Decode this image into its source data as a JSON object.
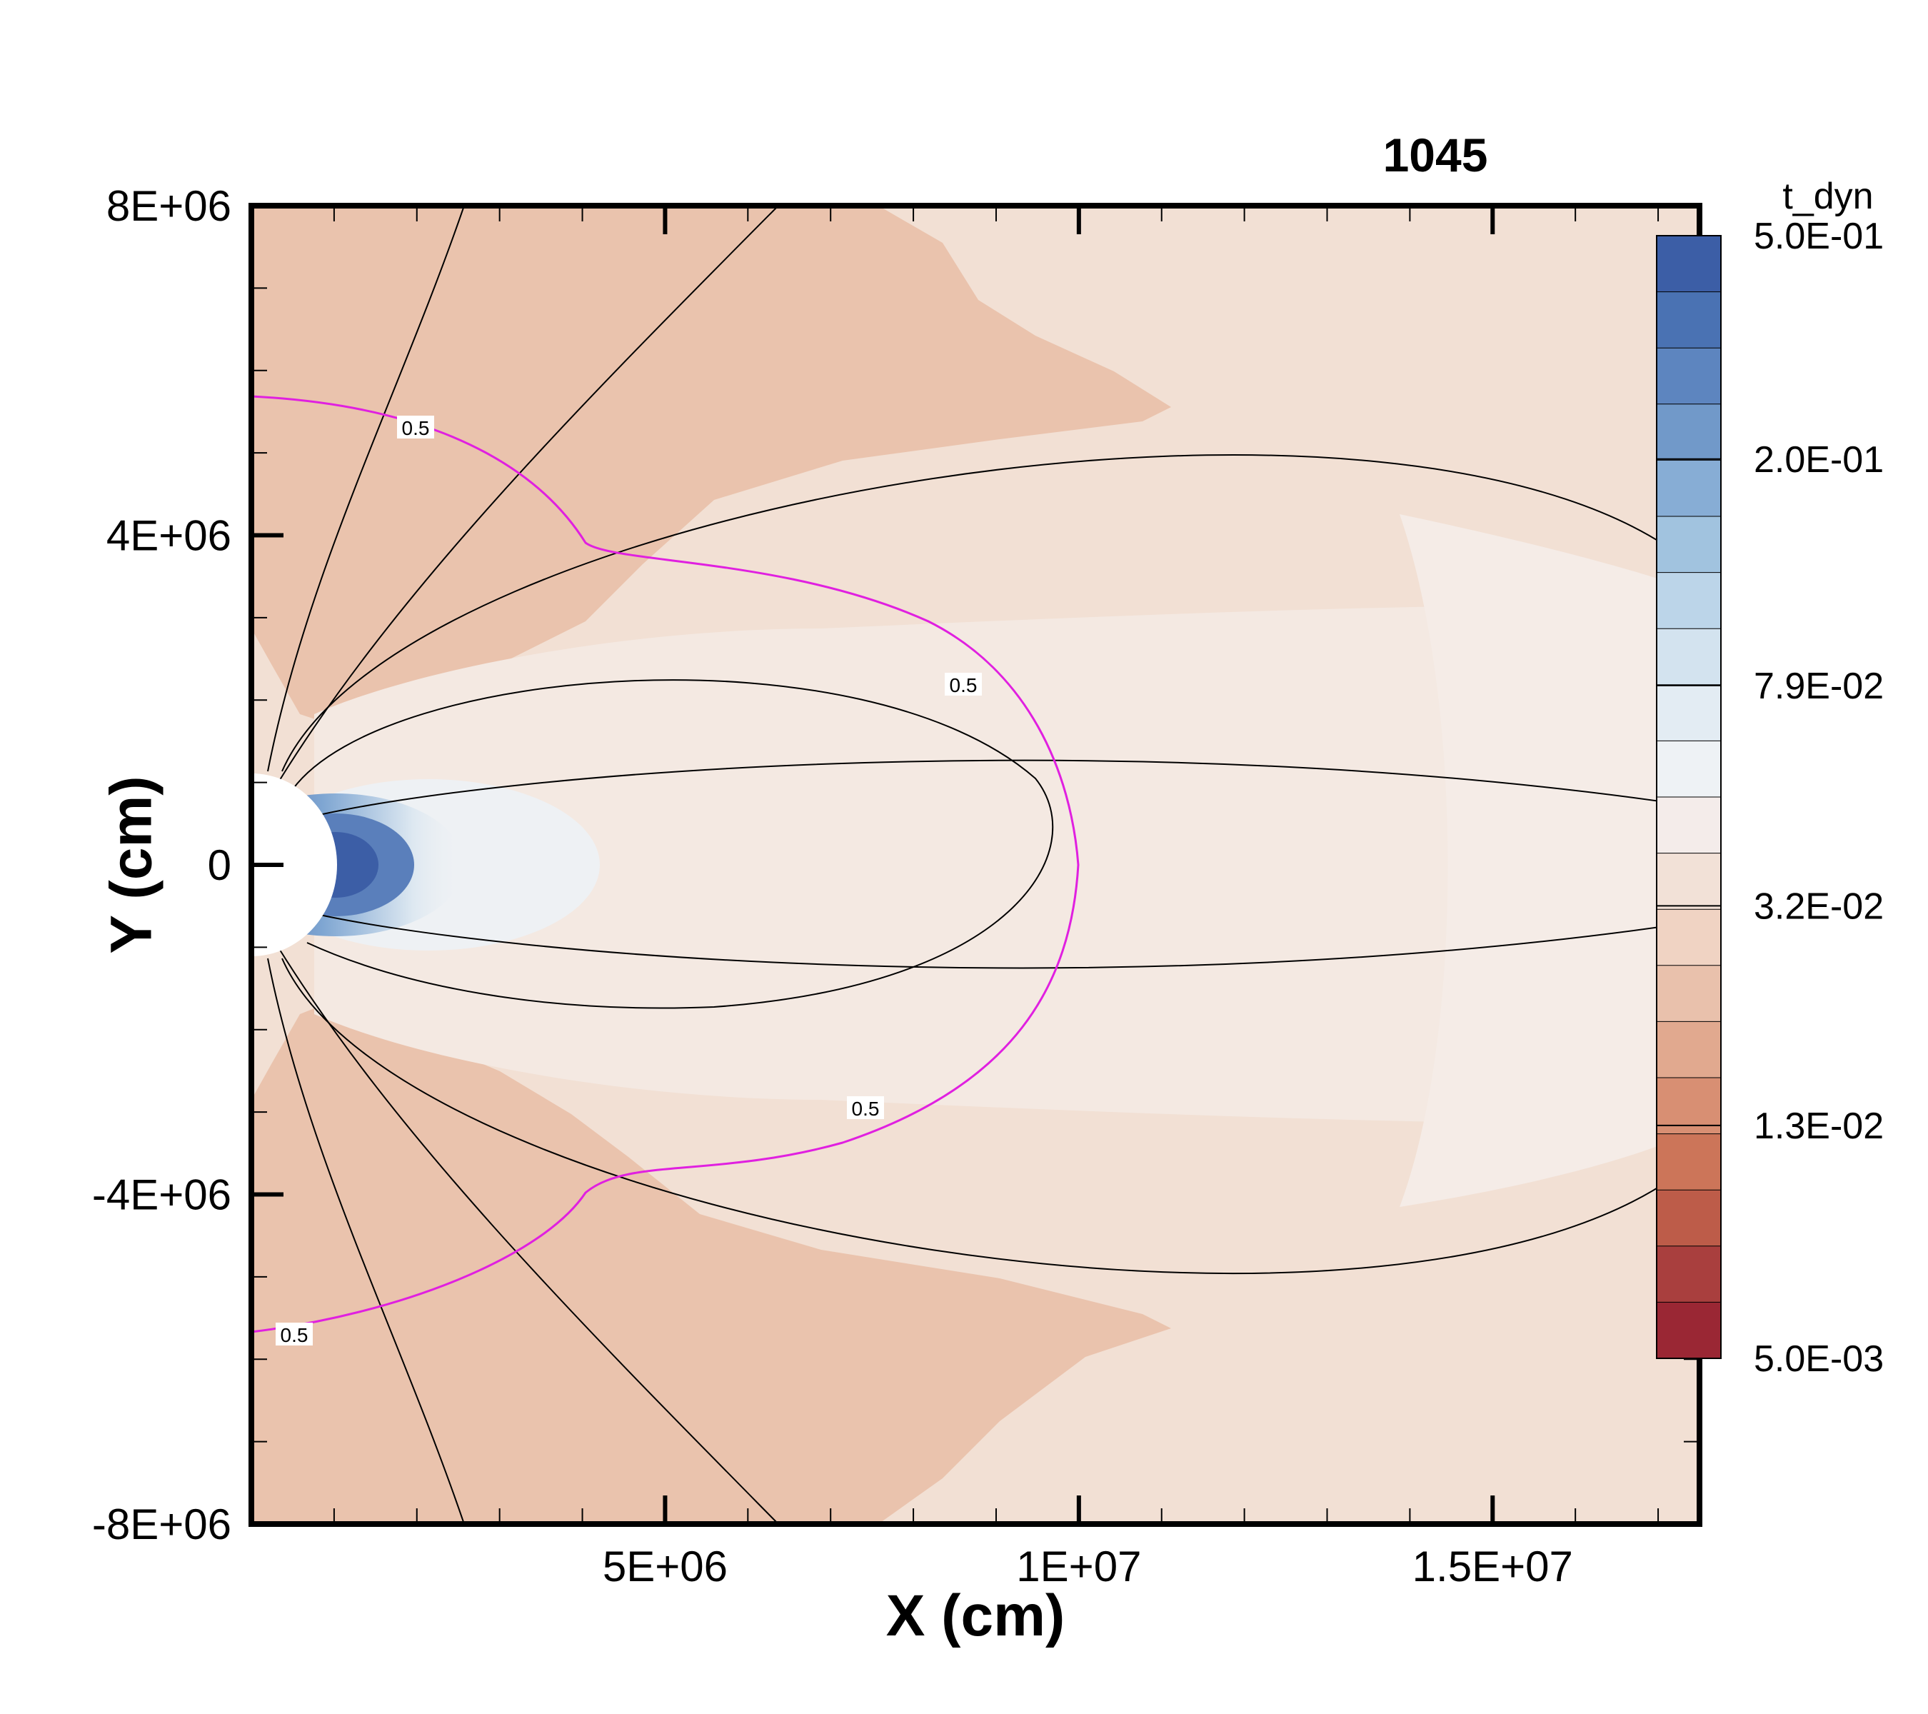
{
  "chart_data": {
    "type": "heatmap",
    "title": "1045",
    "xlabel": "X (cm)",
    "ylabel": "Y (cm)",
    "xlim": [
      0,
      17500000
    ],
    "ylim": [
      -8000000,
      8000000
    ],
    "x_ticks": [
      {
        "value": 5000000,
        "label": "5E+06"
      },
      {
        "value": 10000000,
        "label": "1E+07"
      },
      {
        "value": 15000000,
        "label": "1.5E+07"
      }
    ],
    "y_ticks": [
      {
        "value": 8000000,
        "label": "8E+06"
      },
      {
        "value": 4000000,
        "label": "4E+06"
      },
      {
        "value": 0,
        "label": "0"
      },
      {
        "value": -4000000,
        "label": "-4E+06"
      },
      {
        "value": -8000000,
        "label": "-8E+06"
      }
    ],
    "colorbar": {
      "title": "t_dyn",
      "scale": "log",
      "range": [
        0.005,
        0.5
      ],
      "tick_labels": [
        "5.0E-01",
        "2.0E-01",
        "7.9E-02",
        "3.2E-02",
        "1.3E-02",
        "5.0E-03"
      ],
      "levels": [
        "#3c5ea6",
        "#4a72b3",
        "#5d85bf",
        "#7199c9",
        "#87add5",
        "#a1c3df",
        "#bcd5e9",
        "#d3e3ef",
        "#e3ecf3",
        "#eef2f5",
        "#f4ecea",
        "#f2e1d7",
        "#f0d3c3",
        "#e9c1ac",
        "#e1a98f",
        "#d88f73",
        "#cc7559",
        "#bd5c49",
        "#a93f3e",
        "#9a2734"
      ]
    },
    "contour_label": "0.5",
    "contour_color": "#e020e0"
  }
}
